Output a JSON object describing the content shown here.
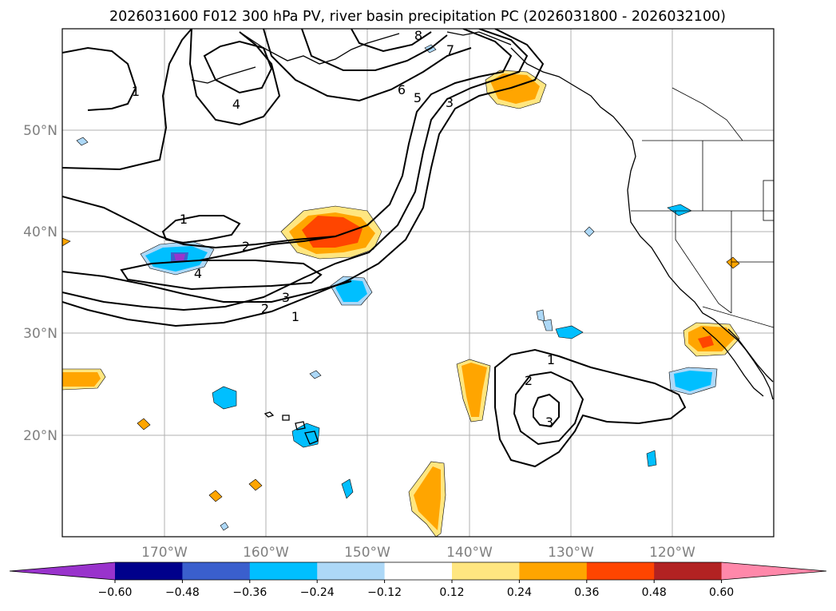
{
  "title": "2026031600 F012 300 hPa PV, river basin precipitation PC (2026031800 - 2026032100)",
  "lat_labels": [
    "50°N",
    "40°N",
    "30°N",
    "20°N"
  ],
  "lon_labels": [
    "170°W",
    "160°W",
    "150°W",
    "140°W",
    "130°W",
    "120°W"
  ],
  "colorbar": {
    "colors": [
      "#9933cc",
      "#00008b",
      "#3a5fcd",
      "#00bfff",
      "#add8f7",
      "#ffffff",
      "#ffe680",
      "#ffa500",
      "#ff4500",
      "#b22222",
      "#ff88aa"
    ],
    "tick_labels": [
      "−0.60",
      "−0.48",
      "−0.36",
      "−0.24",
      "−0.12",
      "0.12",
      "0.24",
      "0.36",
      "0.48",
      "0.60"
    ]
  },
  "pv_contour_labels": [
    "1",
    "4",
    "6",
    "5",
    "3",
    "7",
    "8",
    "1",
    "2",
    "4",
    "3",
    "2",
    "1",
    "1",
    "2",
    "3"
  ]
}
